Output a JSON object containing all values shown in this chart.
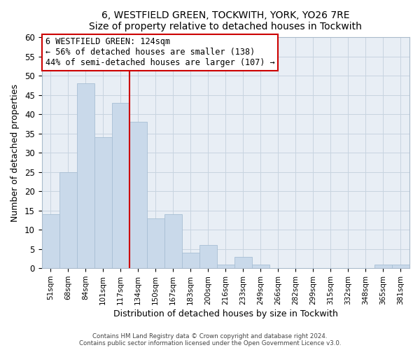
{
  "title": "6, WESTFIELD GREEN, TOCKWITH, YORK, YO26 7RE",
  "subtitle": "Size of property relative to detached houses in Tockwith",
  "xlabel": "Distribution of detached houses by size in Tockwith",
  "ylabel": "Number of detached properties",
  "bar_labels": [
    "51sqm",
    "68sqm",
    "84sqm",
    "101sqm",
    "117sqm",
    "134sqm",
    "150sqm",
    "167sqm",
    "183sqm",
    "200sqm",
    "216sqm",
    "233sqm",
    "249sqm",
    "266sqm",
    "282sqm",
    "299sqm",
    "315sqm",
    "332sqm",
    "348sqm",
    "365sqm",
    "381sqm"
  ],
  "bar_values": [
    14,
    25,
    48,
    34,
    43,
    38,
    13,
    14,
    4,
    6,
    1,
    3,
    1,
    0,
    0,
    0,
    0,
    0,
    0,
    1,
    1
  ],
  "bar_color": "#c9d9ea",
  "bar_edge_color": "#a8bfd4",
  "highlight_line_color": "#cc0000",
  "ylim": [
    0,
    60
  ],
  "yticks": [
    0,
    5,
    10,
    15,
    20,
    25,
    30,
    35,
    40,
    45,
    50,
    55,
    60
  ],
  "annotation_title": "6 WESTFIELD GREEN: 124sqm",
  "annotation_line1": "← 56% of detached houses are smaller (138)",
  "annotation_line2": "44% of semi-detached houses are larger (107) →",
  "annotation_box_color": "#ffffff",
  "annotation_box_edge": "#cc0000",
  "footer_line1": "Contains HM Land Registry data © Crown copyright and database right 2024.",
  "footer_line2": "Contains public sector information licensed under the Open Government Licence v3.0.",
  "plot_bg_color": "#e8eef5",
  "fig_bg_color": "#ffffff",
  "grid_color": "#c8d4e0"
}
